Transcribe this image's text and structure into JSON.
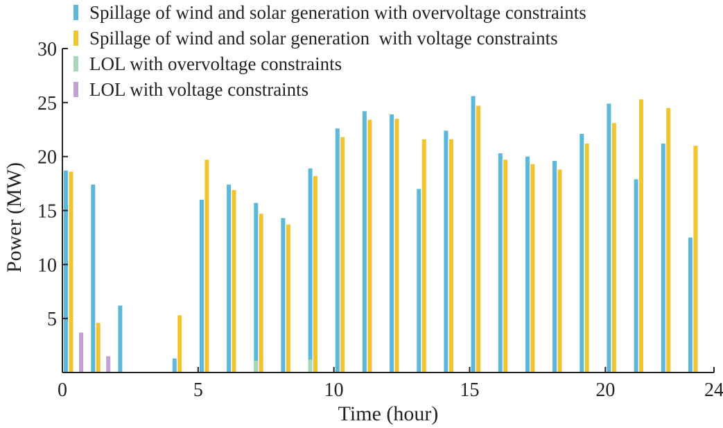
{
  "chart_data": {
    "type": "bar",
    "xlabel": "Time (hour)",
    "ylabel": "Power (MW)",
    "xlim": [
      0,
      24
    ],
    "ylim": [
      0,
      30
    ],
    "xticks": [
      "0",
      "5",
      "10",
      "15",
      "20",
      "24"
    ],
    "yticks": [
      "5",
      "10",
      "15",
      "20",
      "25",
      "30"
    ],
    "grid": false,
    "legend_position": "top-left",
    "series": [
      {
        "name": "Spillage of wind and solar generation with overvoltage constraints",
        "color": "#5bb8d8",
        "x": [
          0,
          1,
          2,
          4,
          5,
          6,
          7,
          8,
          9,
          10,
          11,
          12,
          13,
          14,
          15,
          16,
          17,
          18,
          19,
          20,
          21,
          22,
          23
        ],
        "values": [
          18.7,
          17.4,
          6.2,
          1.3,
          16.0,
          17.4,
          15.7,
          14.3,
          18.9,
          22.6,
          24.2,
          23.9,
          17.0,
          22.4,
          25.6,
          20.3,
          20.0,
          19.6,
          22.1,
          24.9,
          17.9,
          21.2,
          12.5
        ]
      },
      {
        "name": "Spillage of wind and solar generation  with voltage constraints",
        "color": "#f0c42e",
        "x": [
          0,
          1,
          4,
          5,
          6,
          7,
          8,
          9,
          10,
          11,
          12,
          13,
          14,
          15,
          16,
          17,
          18,
          19,
          20,
          21,
          22,
          23
        ],
        "values": [
          18.6,
          4.6,
          5.3,
          19.7,
          16.9,
          14.7,
          13.7,
          18.2,
          21.8,
          23.4,
          23.5,
          21.6,
          21.6,
          24.7,
          19.7,
          19.3,
          18.8,
          21.2,
          23.1,
          25.3,
          24.5,
          21.0
        ]
      },
      {
        "name": "LOL with overvoltage constraints",
        "color": "#a8d6b8",
        "x": [
          7,
          9
        ],
        "values": [
          1.1,
          1.2
        ]
      },
      {
        "name": "LOL with voltage constraints",
        "color": "#c2a0d6",
        "x": [
          0,
          1
        ],
        "values": [
          3.7,
          1.5
        ]
      }
    ]
  }
}
